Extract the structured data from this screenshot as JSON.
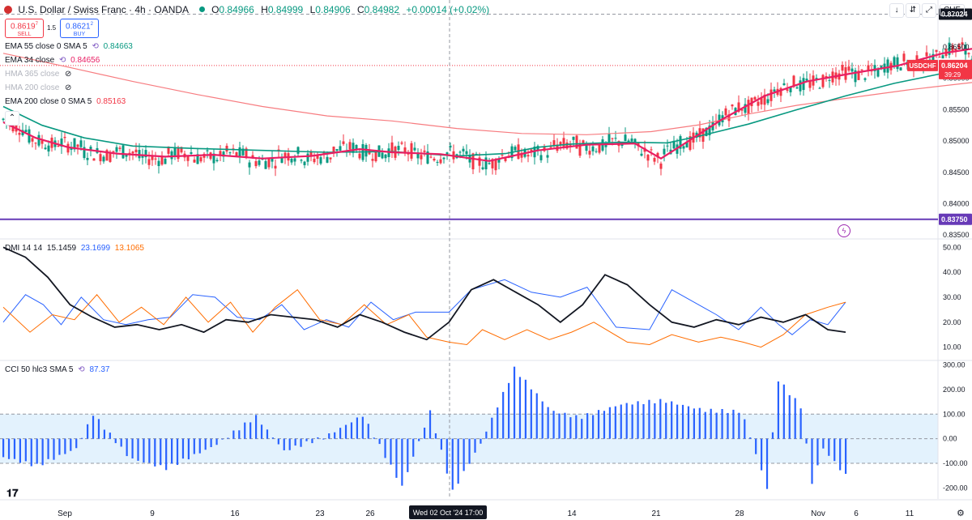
{
  "header": {
    "symbol_title": "U.S. Dollar / Swiss Franc · 4h · OANDA",
    "ohlc": {
      "o_label": "O",
      "o": "0.84966",
      "h_label": "H",
      "h": "0.84999",
      "l_label": "L",
      "l": "0.84906",
      "c_label": "C",
      "c": "0.84982",
      "change": "+0.00014 (+0.02%)"
    },
    "sell": {
      "price_main": "0.8619",
      "price_sup": "7",
      "label": "SELL"
    },
    "spread": "1.5",
    "buy": {
      "price_main": "0.8621",
      "price_sup": "2",
      "label": "BUY"
    },
    "currency": "CHF"
  },
  "indicators": [
    {
      "label": "EMA 55 close 0 SMA 5",
      "value": "0.84663",
      "value_color": "#089981",
      "muted": false
    },
    {
      "label": "EMA 34 close",
      "value": "0.84656",
      "value_color": "#e91e63",
      "muted": false
    },
    {
      "label": "HMA 365 close",
      "value": "",
      "value_color": "",
      "muted": true
    },
    {
      "label": "HMA 200 close",
      "value": "",
      "value_color": "",
      "muted": true
    },
    {
      "label": "EMA 200 close 0 SMA 5",
      "value": "0.85163",
      "value_color": "#f23645",
      "muted": false
    }
  ],
  "dmi_legend": {
    "label": "DMI 14 14",
    "v1": "15.1459",
    "v2": "23.1699",
    "v3": "13.1065"
  },
  "cci_legend": {
    "label": "CCI 50 hlc3 SMA 5",
    "value": "87.37"
  },
  "price_axis_tags": {
    "hline_value": "0.87024",
    "current_symbol": "USDCHF",
    "current_value": "0.86204",
    "countdown": "39:29",
    "support_value": "0.83750"
  },
  "crosshair_label": "Wed 02 Oct '24  17:00",
  "colors": {
    "up": "#089981",
    "down": "#f23645",
    "ema34": "#e91e63",
    "ema55": "#089981",
    "ema200": "#f77c80",
    "support": "#673ab7",
    "plusDI": "#2962ff",
    "minusDI": "#ff6d00",
    "adx": "#131722",
    "cci": "#2962ff",
    "cci_band": "#e3f2fd"
  },
  "chart_data": [
    {
      "type": "candlestick",
      "title": "U.S. Dollar / Swiss Franc · 4h · OANDA",
      "x_ticks": [
        "Sep",
        "9",
        "16",
        "23",
        "26",
        "Wed 02 Oct '24  17:00",
        "14",
        "21",
        "28",
        "Nov",
        "6",
        "11"
      ],
      "y_ticks": [
        0.835,
        0.84,
        0.845,
        0.85,
        0.855,
        0.86,
        0.865,
        0.87
      ],
      "ylim": [
        0.8345,
        0.8725
      ],
      "horizontal_lines": [
        0.8375,
        0.87024
      ],
      "last_price": 0.86204,
      "series": [
        {
          "name": "EMA 55 close 0 SMA 5",
          "points": [
            [
              0,
              0.8555
            ],
            [
              12,
              0.8525
            ],
            [
              25,
              0.8505
            ],
            [
              40,
              0.8492
            ],
            [
              60,
              0.8488
            ],
            [
              80,
              0.8485
            ],
            [
              100,
              0.8482
            ],
            [
              120,
              0.8483
            ],
            [
              140,
              0.8476
            ],
            [
              155,
              0.848
            ],
            [
              165,
              0.849
            ],
            [
              175,
              0.8495
            ],
            [
              190,
              0.8498
            ],
            [
              205,
              0.8497
            ],
            [
              215,
              0.8508
            ],
            [
              230,
              0.8527
            ],
            [
              245,
              0.855
            ],
            [
              260,
              0.8572
            ],
            [
              275,
              0.8592
            ],
            [
              290,
              0.8608
            ],
            [
              305,
              0.8622
            ],
            [
              315,
              0.8632
            ],
            [
              325,
              0.8641
            ],
            [
              335,
              0.8648
            ],
            [
              345,
              0.8655
            ],
            [
              353,
              0.8659
            ],
            [
              360,
              0.866
            ],
            [
              366,
              0.8663
            ],
            [
              372,
              0.8658
            ],
            [
              378,
              0.8654
            ]
          ]
        },
        {
          "name": "EMA 34 close",
          "points": [
            [
              0,
              0.853
            ],
            [
              10,
              0.8505
            ],
            [
              20,
              0.849
            ],
            [
              35,
              0.848
            ],
            [
              50,
              0.8475
            ],
            [
              65,
              0.8478
            ],
            [
              80,
              0.8472
            ],
            [
              95,
              0.8476
            ],
            [
              110,
              0.8487
            ],
            [
              120,
              0.8482
            ],
            [
              135,
              0.8479
            ],
            [
              150,
              0.8468
            ],
            [
              165,
              0.8485
            ],
            [
              180,
              0.8494
            ],
            [
              195,
              0.8496
            ],
            [
              203,
              0.8472
            ],
            [
              210,
              0.8495
            ],
            [
              222,
              0.8535
            ],
            [
              235,
              0.8572
            ],
            [
              248,
              0.8595
            ],
            [
              262,
              0.8608
            ],
            [
              276,
              0.862
            ],
            [
              290,
              0.864
            ],
            [
              305,
              0.8652
            ],
            [
              320,
              0.8664
            ],
            [
              335,
              0.8668
            ],
            [
              348,
              0.8668
            ],
            [
              356,
              0.867
            ],
            [
              364,
              0.8662
            ],
            [
              370,
              0.8672
            ],
            [
              378,
              0.8656
            ]
          ]
        },
        {
          "name": "EMA 200 close 0 SMA 5",
          "points": [
            [
              0,
              0.864
            ],
            [
              20,
              0.8618
            ],
            [
              40,
              0.8595
            ],
            [
              60,
              0.8574
            ],
            [
              80,
              0.8555
            ],
            [
              100,
              0.854
            ],
            [
              120,
              0.8532
            ],
            [
              140,
              0.852
            ],
            [
              160,
              0.8512
            ],
            [
              180,
              0.851
            ],
            [
              200,
              0.8515
            ],
            [
              215,
              0.8526
            ],
            [
              230,
              0.8543
            ],
            [
              245,
              0.8557
            ],
            [
              260,
              0.8568
            ],
            [
              280,
              0.8582
            ],
            [
              300,
              0.8594
            ],
            [
              320,
              0.8605
            ],
            [
              340,
              0.8614
            ],
            [
              355,
              0.8617
            ],
            [
              370,
              0.8624
            ],
            [
              378,
              0.8625
            ]
          ]
        }
      ]
    },
    {
      "type": "line",
      "title": "DMI 14 14",
      "y_ticks": [
        10,
        20,
        30,
        40,
        50
      ],
      "ylim": [
        5,
        53
      ],
      "series": [
        {
          "name": "+DI",
          "points": [
            [
              0,
              20
            ],
            [
              10,
              31
            ],
            [
              18,
              27
            ],
            [
              26,
              19
            ],
            [
              35,
              30
            ],
            [
              45,
              21
            ],
            [
              55,
              19
            ],
            [
              65,
              21
            ],
            [
              75,
              22
            ],
            [
              85,
              31
            ],
            [
              95,
              30
            ],
            [
              105,
              22
            ],
            [
              115,
              21
            ],
            [
              125,
              27
            ],
            [
              135,
              17
            ],
            [
              145,
              21
            ],
            [
              155,
              18
            ],
            [
              165,
              28
            ],
            [
              175,
              21
            ],
            [
              185,
              24
            ],
            [
              200,
              24
            ],
            [
              210,
              33
            ],
            [
              225,
              37
            ],
            [
              237,
              32
            ],
            [
              250,
              30
            ],
            [
              262,
              34
            ],
            [
              275,
              18
            ],
            [
              290,
              17
            ],
            [
              300,
              33
            ],
            [
              312,
              27
            ],
            [
              320,
              23
            ],
            [
              330,
              17
            ],
            [
              340,
              26
            ],
            [
              348,
              19
            ],
            [
              354,
              15
            ],
            [
              362,
              21
            ],
            [
              370,
              19
            ],
            [
              378,
              28
            ]
          ]
        },
        {
          "name": "-DI",
          "points": [
            [
              0,
              26
            ],
            [
              12,
              16
            ],
            [
              22,
              23
            ],
            [
              32,
              21
            ],
            [
              42,
              31
            ],
            [
              52,
              20
            ],
            [
              62,
              26
            ],
            [
              72,
              19
            ],
            [
              82,
              30
            ],
            [
              92,
              20
            ],
            [
              102,
              28
            ],
            [
              112,
              16
            ],
            [
              122,
              26
            ],
            [
              132,
              33
            ],
            [
              142,
              21
            ],
            [
              152,
              19
            ],
            [
              162,
              27
            ],
            [
              172,
              19
            ],
            [
              182,
              23
            ],
            [
              190,
              14
            ],
            [
              200,
              12
            ],
            [
              208,
              11
            ],
            [
              215,
              17
            ],
            [
              225,
              13
            ],
            [
              235,
              17
            ],
            [
              245,
              13
            ],
            [
              255,
              16
            ],
            [
              265,
              20
            ],
            [
              280,
              12
            ],
            [
              290,
              11
            ],
            [
              300,
              15
            ],
            [
              312,
              12
            ],
            [
              322,
              14
            ],
            [
              332,
              12
            ],
            [
              340,
              10
            ],
            [
              350,
              15
            ],
            [
              360,
              23
            ],
            [
              370,
              26
            ],
            [
              378,
              28
            ]
          ]
        },
        {
          "name": "ADX",
          "points": [
            [
              0,
              50
            ],
            [
              10,
              46
            ],
            [
              20,
              38
            ],
            [
              30,
              27
            ],
            [
              40,
              22
            ],
            [
              50,
              18
            ],
            [
              60,
              19
            ],
            [
              70,
              17
            ],
            [
              80,
              19
            ],
            [
              90,
              16
            ],
            [
              100,
              21
            ],
            [
              110,
              20
            ],
            [
              120,
              23
            ],
            [
              130,
              22
            ],
            [
              140,
              21
            ],
            [
              150,
              18
            ],
            [
              160,
              23
            ],
            [
              170,
              20
            ],
            [
              180,
              16
            ],
            [
              190,
              13
            ],
            [
              200,
              20
            ],
            [
              210,
              33
            ],
            [
              220,
              37
            ],
            [
              230,
              32
            ],
            [
              240,
              27
            ],
            [
              250,
              20
            ],
            [
              260,
              27
            ],
            [
              270,
              39
            ],
            [
              280,
              35
            ],
            [
              290,
              27
            ],
            [
              300,
              20
            ],
            [
              310,
              18
            ],
            [
              320,
              21
            ],
            [
              330,
              19
            ],
            [
              340,
              22
            ],
            [
              350,
              20
            ],
            [
              360,
              23
            ],
            [
              370,
              17
            ],
            [
              378,
              16
            ]
          ]
        }
      ]
    },
    {
      "type": "histogram",
      "title": "CCI 50 hlc3 SMA 5",
      "y_ticks": [
        -200,
        -100,
        0,
        100,
        200,
        300
      ],
      "ylim": [
        -245,
        315
      ],
      "band": [
        -100,
        100
      ],
      "peaks": [
        [
          0,
          -75
        ],
        [
          12,
          -110
        ],
        [
          26,
          -40
        ],
        [
          32,
          100
        ],
        [
          45,
          -80
        ],
        [
          58,
          -120
        ],
        [
          75,
          -30
        ],
        [
          90,
          90
        ],
        [
          100,
          -50
        ],
        [
          115,
          10
        ],
        [
          128,
          95
        ],
        [
          142,
          -195
        ],
        [
          152,
          110
        ],
        [
          160,
          -215
        ],
        [
          170,
          -20
        ],
        [
          182,
          285
        ],
        [
          195,
          115
        ],
        [
          205,
          85
        ],
        [
          220,
          140
        ],
        [
          235,
          155
        ],
        [
          250,
          115
        ],
        [
          263,
          110
        ],
        [
          272,
          -200
        ],
        [
          276,
          240
        ],
        [
          284,
          130
        ],
        [
          288,
          -180
        ],
        [
          292,
          -40
        ],
        [
          300,
          -150
        ]
      ]
    }
  ]
}
